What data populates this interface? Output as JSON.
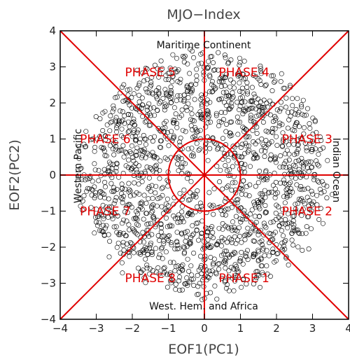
{
  "chart_data": {
    "type": "scatter",
    "title": "MJO−Index",
    "xlabel": "EOF1(PC1)",
    "ylabel": "EOF2(PC2)",
    "xlim": [
      -4,
      4
    ],
    "ylim": [
      -4,
      4
    ],
    "xticks": [
      -4,
      -3,
      -2,
      -1,
      0,
      1,
      2,
      3,
      4
    ],
    "yticks": [
      -4,
      -3,
      -2,
      -1,
      0,
      1,
      2,
      3,
      4
    ],
    "xtick_labels": [
      "−4",
      "−3",
      "−2",
      "−1",
      "0",
      "1",
      "2",
      "3",
      "4"
    ],
    "ytick_labels": [
      "−4",
      "−3",
      "−2",
      "−1",
      "0",
      "1",
      "2",
      "3",
      "4"
    ],
    "reference_circle_radius": 1,
    "phase_labels": [
      {
        "text": "PHASE 1",
        "x": 1.1,
        "y": -2.85
      },
      {
        "text": "PHASE 2",
        "x": 2.85,
        "y": -1.0
      },
      {
        "text": "PHASE 3",
        "x": 2.85,
        "y": 1.0
      },
      {
        "text": "PHASE 4",
        "x": 1.1,
        "y": 2.85
      },
      {
        "text": "PHASE 5",
        "x": -1.5,
        "y": 2.85
      },
      {
        "text": "PHASE 6",
        "x": -2.75,
        "y": 1.0
      },
      {
        "text": "PHASE 7",
        "x": -2.75,
        "y": -1.0
      },
      {
        "text": "PHASE 8",
        "x": -1.5,
        "y": -2.85
      }
    ],
    "region_labels": {
      "top": "Maritime Continent",
      "bottom": "West. Hem. and Africa",
      "left": "Western Pacific",
      "right": "Indian Ocean"
    },
    "series": [
      {
        "marker": "open-circle",
        "color": "#000000",
        "max_amplitude": 3.6
      }
    ],
    "line_color": "#e00000",
    "grid": false
  }
}
